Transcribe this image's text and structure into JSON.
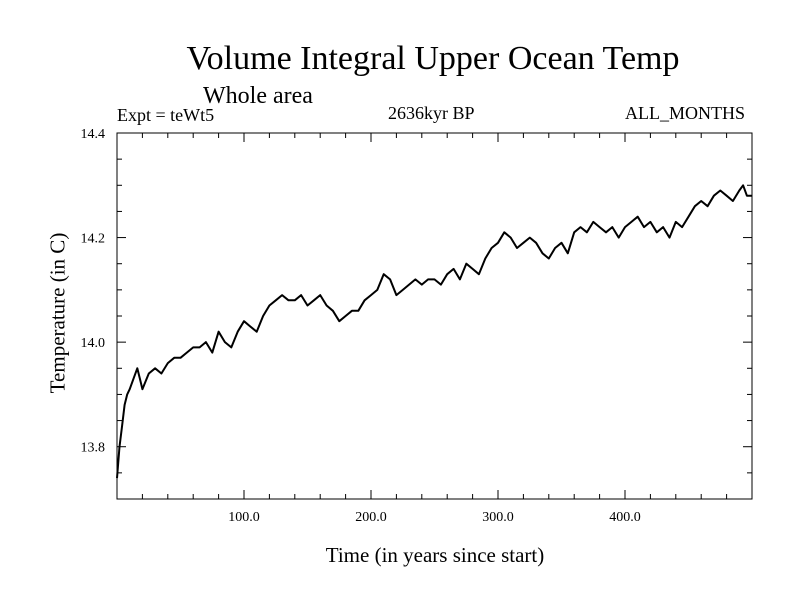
{
  "chart_data": {
    "type": "line",
    "title": "Volume Integral Upper Ocean Temp",
    "subtitle": "Whole area",
    "experiment": "Expt = teWt5",
    "period": "2636kyr BP",
    "months": "ALL_MONTHS",
    "xlabel": "Time (in years since start)",
    "ylabel": "Temperature (in C)",
    "xlim": [
      0,
      500
    ],
    "ylim": [
      13.7,
      14.4
    ],
    "xticks": [
      100,
      200,
      300,
      400
    ],
    "xtick_labels": [
      "100.0",
      "200.0",
      "300.0",
      "400.0"
    ],
    "yticks": [
      13.8,
      14.0,
      14.2,
      14.4
    ],
    "ytick_labels": [
      "13.8",
      "14.0",
      "14.2",
      "14.4"
    ],
    "line_color": "#000000",
    "series": [
      {
        "name": "Volume Integral Upper Ocean Temp",
        "x": [
          0,
          2,
          4,
          6,
          8,
          10,
          13,
          16,
          18,
          20,
          25,
          30,
          35,
          40,
          45,
          50,
          55,
          60,
          65,
          70,
          75,
          80,
          85,
          90,
          95,
          100,
          105,
          110,
          115,
          120,
          125,
          130,
          135,
          140,
          145,
          150,
          155,
          160,
          165,
          170,
          175,
          180,
          185,
          190,
          195,
          200,
          205,
          210,
          215,
          220,
          225,
          230,
          235,
          240,
          245,
          250,
          255,
          260,
          265,
          270,
          275,
          280,
          285,
          290,
          295,
          300,
          305,
          310,
          315,
          320,
          325,
          330,
          335,
          340,
          345,
          350,
          355,
          360,
          365,
          370,
          375,
          380,
          385,
          390,
          395,
          400,
          405,
          410,
          415,
          420,
          425,
          430,
          435,
          440,
          445,
          450,
          455,
          460,
          465,
          470,
          475,
          480,
          485,
          490,
          493,
          496,
          500
        ],
        "y": [
          13.74,
          13.8,
          13.84,
          13.88,
          13.9,
          13.91,
          13.93,
          13.95,
          13.93,
          13.91,
          13.94,
          13.95,
          13.94,
          13.96,
          13.97,
          13.97,
          13.98,
          13.99,
          13.99,
          14.0,
          13.98,
          14.02,
          14.0,
          13.99,
          14.02,
          14.04,
          14.03,
          14.02,
          14.05,
          14.07,
          14.08,
          14.09,
          14.08,
          14.08,
          14.09,
          14.07,
          14.08,
          14.09,
          14.07,
          14.06,
          14.04,
          14.05,
          14.06,
          14.06,
          14.08,
          14.09,
          14.1,
          14.13,
          14.12,
          14.09,
          14.1,
          14.11,
          14.12,
          14.11,
          14.12,
          14.12,
          14.11,
          14.13,
          14.14,
          14.12,
          14.15,
          14.14,
          14.13,
          14.16,
          14.18,
          14.19,
          14.21,
          14.2,
          14.18,
          14.19,
          14.2,
          14.19,
          14.17,
          14.16,
          14.18,
          14.19,
          14.17,
          14.21,
          14.22,
          14.21,
          14.23,
          14.22,
          14.21,
          14.22,
          14.2,
          14.22,
          14.23,
          14.24,
          14.22,
          14.23,
          14.21,
          14.22,
          14.2,
          14.23,
          14.22,
          14.24,
          14.26,
          14.27,
          14.26,
          14.28,
          14.29,
          14.28,
          14.27,
          14.29,
          14.3,
          14.28,
          14.28
        ]
      }
    ]
  }
}
